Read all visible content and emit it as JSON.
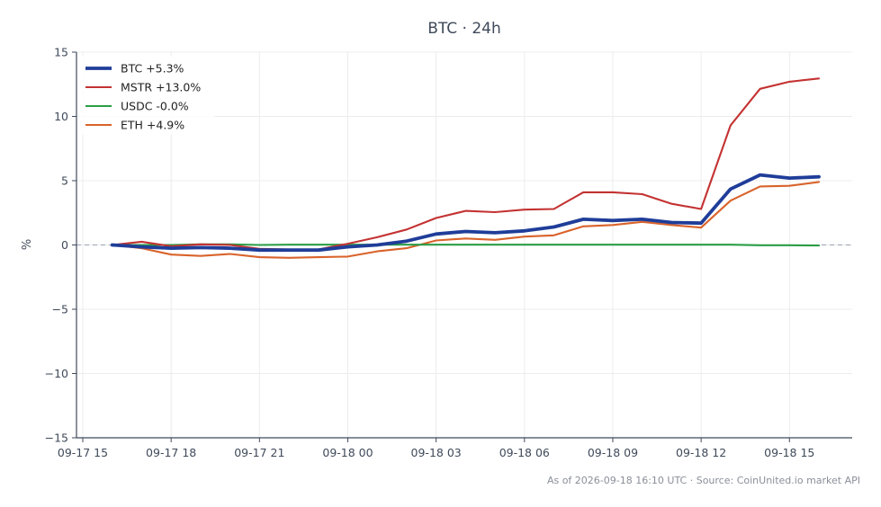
{
  "chart_data": {
    "type": "line",
    "title": "BTC · 24h",
    "ylabel": "%",
    "xlabel": "",
    "ylim": [
      -15,
      15
    ],
    "yticks": [
      -15,
      -10,
      -5,
      0,
      5,
      10,
      15
    ],
    "ytick_labels": [
      "−15",
      "−10",
      "−5",
      "0",
      "5",
      "10",
      "15"
    ],
    "x_ticks": [
      "09-17 15",
      "09-17 18",
      "09-17 21",
      "09-18 00",
      "09-18 03",
      "09-18 06",
      "09-18 09",
      "09-18 12",
      "09-18 15"
    ],
    "x": [
      "09-17 16",
      "09-17 17",
      "09-17 18",
      "09-17 19",
      "09-17 20",
      "09-17 21",
      "09-17 22",
      "09-17 23",
      "09-18 00",
      "09-18 01",
      "09-18 02",
      "09-18 03",
      "09-18 04",
      "09-18 05",
      "09-18 06",
      "09-18 07",
      "09-18 08",
      "09-18 09",
      "09-18 10",
      "09-18 11",
      "09-18 12",
      "09-18 13",
      "09-18 14",
      "09-18 15",
      "09-18 16"
    ],
    "grid": true,
    "legend_position": "top-left",
    "zero_line": true,
    "series": [
      {
        "name": "BTC +5.3%",
        "color": "#1f3d99",
        "values": [
          0.0,
          -0.15,
          -0.25,
          -0.2,
          -0.25,
          -0.4,
          -0.4,
          -0.4,
          -0.15,
          0.0,
          0.3,
          0.85,
          1.05,
          0.95,
          1.1,
          1.4,
          2.0,
          1.9,
          2.0,
          1.75,
          1.7,
          4.35,
          5.45,
          5.2,
          5.3
        ]
      },
      {
        "name": "MSTR +13.0%",
        "color": "#c43232",
        "values": [
          0.0,
          0.25,
          -0.1,
          0.05,
          0.0,
          -0.3,
          -0.35,
          -0.35,
          0.1,
          0.6,
          1.2,
          2.1,
          2.65,
          2.55,
          2.75,
          2.8,
          4.1,
          4.1,
          3.95,
          3.2,
          2.8,
          9.3,
          12.15,
          12.7,
          12.95
        ]
      },
      {
        "name": "USDC -0.0%",
        "color": "#2a9d46",
        "values": [
          0.0,
          0.0,
          0.0,
          0.05,
          0.05,
          0.0,
          0.02,
          0.02,
          0.02,
          0.02,
          0.02,
          0.02,
          0.02,
          0.02,
          0.02,
          0.02,
          0.02,
          0.02,
          0.02,
          0.02,
          0.02,
          0.02,
          -0.02,
          -0.02,
          -0.04
        ]
      },
      {
        "name": "ETH +4.9%",
        "color": "#d9632b",
        "values": [
          0.0,
          -0.25,
          -0.75,
          -0.85,
          -0.7,
          -0.95,
          -1.0,
          -0.95,
          -0.9,
          -0.5,
          -0.25,
          0.35,
          0.5,
          0.4,
          0.65,
          0.75,
          1.45,
          1.55,
          1.8,
          1.55,
          1.35,
          3.45,
          4.55,
          4.6,
          4.9
        ]
      }
    ],
    "footnote": "As of 2026-09-18 16:10 UTC · Source: CoinUnited.io market API"
  }
}
